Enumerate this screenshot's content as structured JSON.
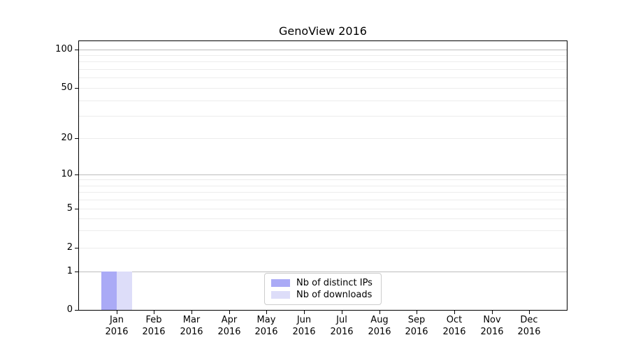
{
  "figure": {
    "title": "GenoView 2016"
  },
  "chart_data": {
    "type": "bar",
    "title": "GenoView 2016",
    "categories": [
      "Jan 2016",
      "Feb 2016",
      "Mar 2016",
      "Apr 2016",
      "May 2016",
      "Jun 2016",
      "Jul 2016",
      "Aug 2016",
      "Sep 2016",
      "Oct 2016",
      "Nov 2016",
      "Dec 2016"
    ],
    "series": [
      {
        "name": "Nb of distinct IPs",
        "color": "#aaaaf6",
        "values": [
          1,
          0,
          0,
          0,
          0,
          0,
          0,
          0,
          0,
          0,
          0,
          0
        ]
      },
      {
        "name": "Nb of downloads",
        "color": "#ddddf9",
        "values": [
          1,
          0,
          0,
          0,
          0,
          0,
          0,
          0,
          0,
          0,
          0,
          0
        ]
      }
    ],
    "xlabel": "",
    "ylabel": "",
    "yscale": "symlog",
    "ylim": [
      0,
      115
    ],
    "yticks": [
      100,
      50,
      20,
      10,
      5,
      2,
      1,
      0
    ],
    "ytick_labels": [
      "100",
      "50",
      "20",
      "10",
      "5",
      "2",
      "1",
      "0"
    ],
    "major_gridlines": [
      1,
      10,
      100
    ],
    "minor_gridlines": [
      2,
      3,
      4,
      5,
      6,
      7,
      8,
      9,
      20,
      30,
      40,
      50,
      60,
      70,
      80,
      90
    ],
    "grid": "horizontal only",
    "legend_position": "lower center inside plot area"
  },
  "legend": {
    "items": [
      {
        "label": "Nb of distinct IPs"
      },
      {
        "label": "Nb of downloads"
      }
    ]
  },
  "colors": {
    "bar_distinct_ips": "#aaaaf6",
    "bar_downloads": "#ddddf9",
    "grid_major": "#bcbcbc",
    "grid_minor": "#ececec",
    "axis_spine": "#000000",
    "legend_border": "#cccccc",
    "background": "#ffffff",
    "text": "#000000"
  }
}
